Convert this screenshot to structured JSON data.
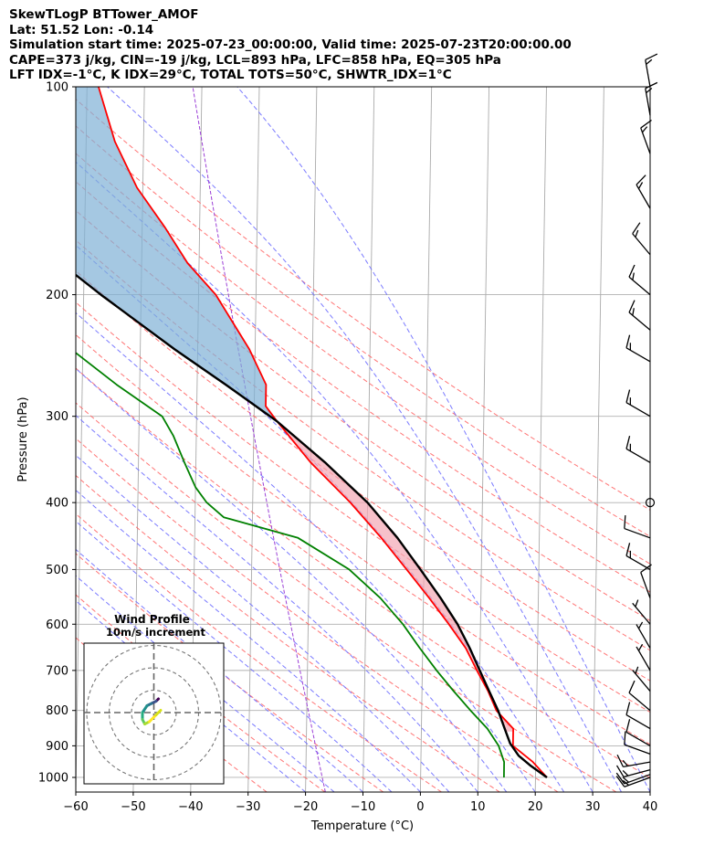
{
  "header": {
    "line1": "SkewTLogP BTTower_AMOF",
    "line2": "Lat: 51.52   Lon: -0.14",
    "line3": "Simulation start time: 2025-07-23_00:00:00, Valid time: 2025-07-23T20:00:00.00",
    "line4": "CAPE=373 j/kg, CIN=-19 j/kg, LCL=893 hPa, LFC=858 hPa, EQ=305 hPa",
    "line5": "LFT IDX=-1°C, K IDX=29°C, TOTAL TOTS=50°C, SHWTR_IDX=1°C"
  },
  "colors": {
    "temperature": "#ff0000",
    "dewpoint": "#008000",
    "parcel": "#000000",
    "cape_fill": "#f4a7b3",
    "cin_fill": "#7fb0d5",
    "dry_adiabat": "#ff6666",
    "moist_adiabat": "#6b6bff",
    "mixing_ratio": "#9b3fd6",
    "isotherm": "#aaaaaa"
  },
  "chart_data": {
    "type": "line",
    "title": "",
    "xlabel": "Temperature (°C)",
    "ylabel": "Pressure (hPa)",
    "xlim": [
      -60,
      40
    ],
    "ylim": [
      1050,
      100
    ],
    "x_ticks": [
      -60,
      -50,
      -40,
      -30,
      -20,
      -10,
      0,
      10,
      20,
      30,
      40
    ],
    "x_tick_labels": [
      "−60",
      "−50",
      "−40",
      "−30",
      "−20",
      "−10",
      "0",
      "10",
      "20",
      "30",
      "40"
    ],
    "y_ticks": [
      1000,
      900,
      800,
      700,
      600,
      500,
      400,
      300,
      200,
      100
    ],
    "y_tick_labels": [
      "1000",
      "900",
      "800",
      "700",
      "600",
      "500",
      "400",
      "300",
      "200",
      "100"
    ],
    "grid": true,
    "series": [
      {
        "name": "Temperature",
        "points": [
          [
            1000,
            22.0
          ],
          [
            950,
            19.5
          ],
          [
            900,
            16.0
          ],
          [
            850,
            16.0
          ],
          [
            800,
            13.0
          ],
          [
            750,
            11.5
          ],
          [
            700,
            9.5
          ],
          [
            650,
            7.5
          ],
          [
            600,
            4.5
          ],
          [
            550,
            1.0
          ],
          [
            500,
            -3.0
          ],
          [
            450,
            -7.5
          ],
          [
            400,
            -13.0
          ],
          [
            350,
            -20.0
          ],
          [
            305,
            -26.0
          ],
          [
            290,
            -28.0
          ],
          [
            270,
            -28.0
          ],
          [
            240,
            -31.0
          ],
          [
            200,
            -37.0
          ],
          [
            180,
            -42.0
          ],
          [
            160,
            -46.0
          ],
          [
            140,
            -51.0
          ],
          [
            120,
            -55.0
          ],
          [
            100,
            -58.0
          ]
        ]
      },
      {
        "name": "Dewpoint",
        "points": [
          [
            1000,
            14.5
          ],
          [
            950,
            14.5
          ],
          [
            900,
            13.5
          ],
          [
            850,
            11.5
          ],
          [
            800,
            8.5
          ],
          [
            750,
            5.5
          ],
          [
            700,
            2.5
          ],
          [
            650,
            -0.5
          ],
          [
            600,
            -3.5
          ],
          [
            550,
            -7.5
          ],
          [
            500,
            -13.0
          ],
          [
            450,
            -22.0
          ],
          [
            420,
            -35.0
          ],
          [
            400,
            -38.0
          ],
          [
            380,
            -40.0
          ],
          [
            350,
            -42.0
          ],
          [
            320,
            -44.0
          ],
          [
            300,
            -46.0
          ],
          [
            270,
            -54.0
          ],
          [
            240,
            -62.0
          ],
          [
            220,
            -70.0
          ],
          [
            210,
            -73.0
          ],
          [
            200,
            -76.0
          ],
          [
            160,
            -84.0
          ],
          [
            130,
            -92.0
          ],
          [
            100,
            -101.0
          ]
        ]
      },
      {
        "name": "Parcel",
        "points": [
          [
            1000,
            22.0
          ],
          [
            960,
            19.0
          ],
          [
            930,
            17.0
          ],
          [
            893,
            15.5
          ],
          [
            850,
            14.5
          ],
          [
            800,
            13.3
          ],
          [
            750,
            11.7
          ],
          [
            700,
            10.0
          ],
          [
            650,
            8.2
          ],
          [
            600,
            6.0
          ],
          [
            550,
            3.0
          ],
          [
            500,
            -0.6
          ],
          [
            450,
            -4.7
          ],
          [
            400,
            -10.0
          ],
          [
            350,
            -17.5
          ],
          [
            305,
            -26.0
          ],
          [
            270,
            -35.0
          ],
          [
            240,
            -44.0
          ],
          [
            200,
            -57.0
          ],
          [
            160,
            -72.0
          ],
          [
            130,
            -86.0
          ],
          [
            100,
            -106.0
          ]
        ]
      }
    ],
    "shading": [
      {
        "name": "CAPE",
        "between": [
          "Temperature",
          "Parcel"
        ],
        "p_range": [
          858,
          305
        ]
      },
      {
        "name": "CIN",
        "between": [
          "Temperature",
          "Parcel"
        ],
        "p_range": [
          305,
          100
        ]
      }
    ],
    "background_lines": {
      "isotherms_step": 10,
      "dry_adiabats_theta": [
        243,
        253,
        263,
        273,
        283,
        293,
        303,
        313,
        323,
        333,
        343,
        353,
        363,
        373,
        383,
        393,
        403
      ],
      "moist_adiabats_start_T": [
        -20,
        -15,
        -10,
        -5,
        0,
        5,
        10,
        15,
        20,
        25,
        30,
        35,
        40
      ],
      "mixing_ratio_lines": 1
    },
    "wind_barbs": {
      "pressures": [
        1000,
        990,
        975,
        950,
        925,
        900,
        850,
        800,
        750,
        700,
        650,
        600,
        550,
        500,
        450,
        400,
        350,
        300,
        250,
        225,
        200,
        175,
        150,
        125,
        110,
        100
      ],
      "speed_kt": [
        15,
        15,
        15,
        15,
        10,
        12,
        10,
        10,
        8,
        5,
        5,
        5,
        10,
        15,
        10,
        0,
        15,
        15,
        15,
        15,
        15,
        15,
        15,
        15,
        15,
        15
      ],
      "direction_deg": [
        250,
        250,
        255,
        260,
        290,
        300,
        300,
        310,
        320,
        330,
        330,
        320,
        340,
        300,
        290,
        0,
        300,
        300,
        300,
        310,
        310,
        320,
        330,
        340,
        350,
        350
      ]
    }
  },
  "inset": {
    "title": "Wind Profile",
    "subtitle": "10m/s increment",
    "rings": 3,
    "hodograph": [
      [
        1.0,
        -3.0
      ],
      [
        0.5,
        -2.5
      ],
      [
        -0.5,
        -2.0
      ],
      [
        -1.5,
        -1.5
      ],
      [
        -2.5,
        0.0
      ],
      [
        -2.5,
        1.5
      ],
      [
        -2.0,
        2.5
      ],
      [
        -1.0,
        2.0
      ],
      [
        0.5,
        0.5
      ],
      [
        1.5,
        -0.5
      ]
    ]
  }
}
